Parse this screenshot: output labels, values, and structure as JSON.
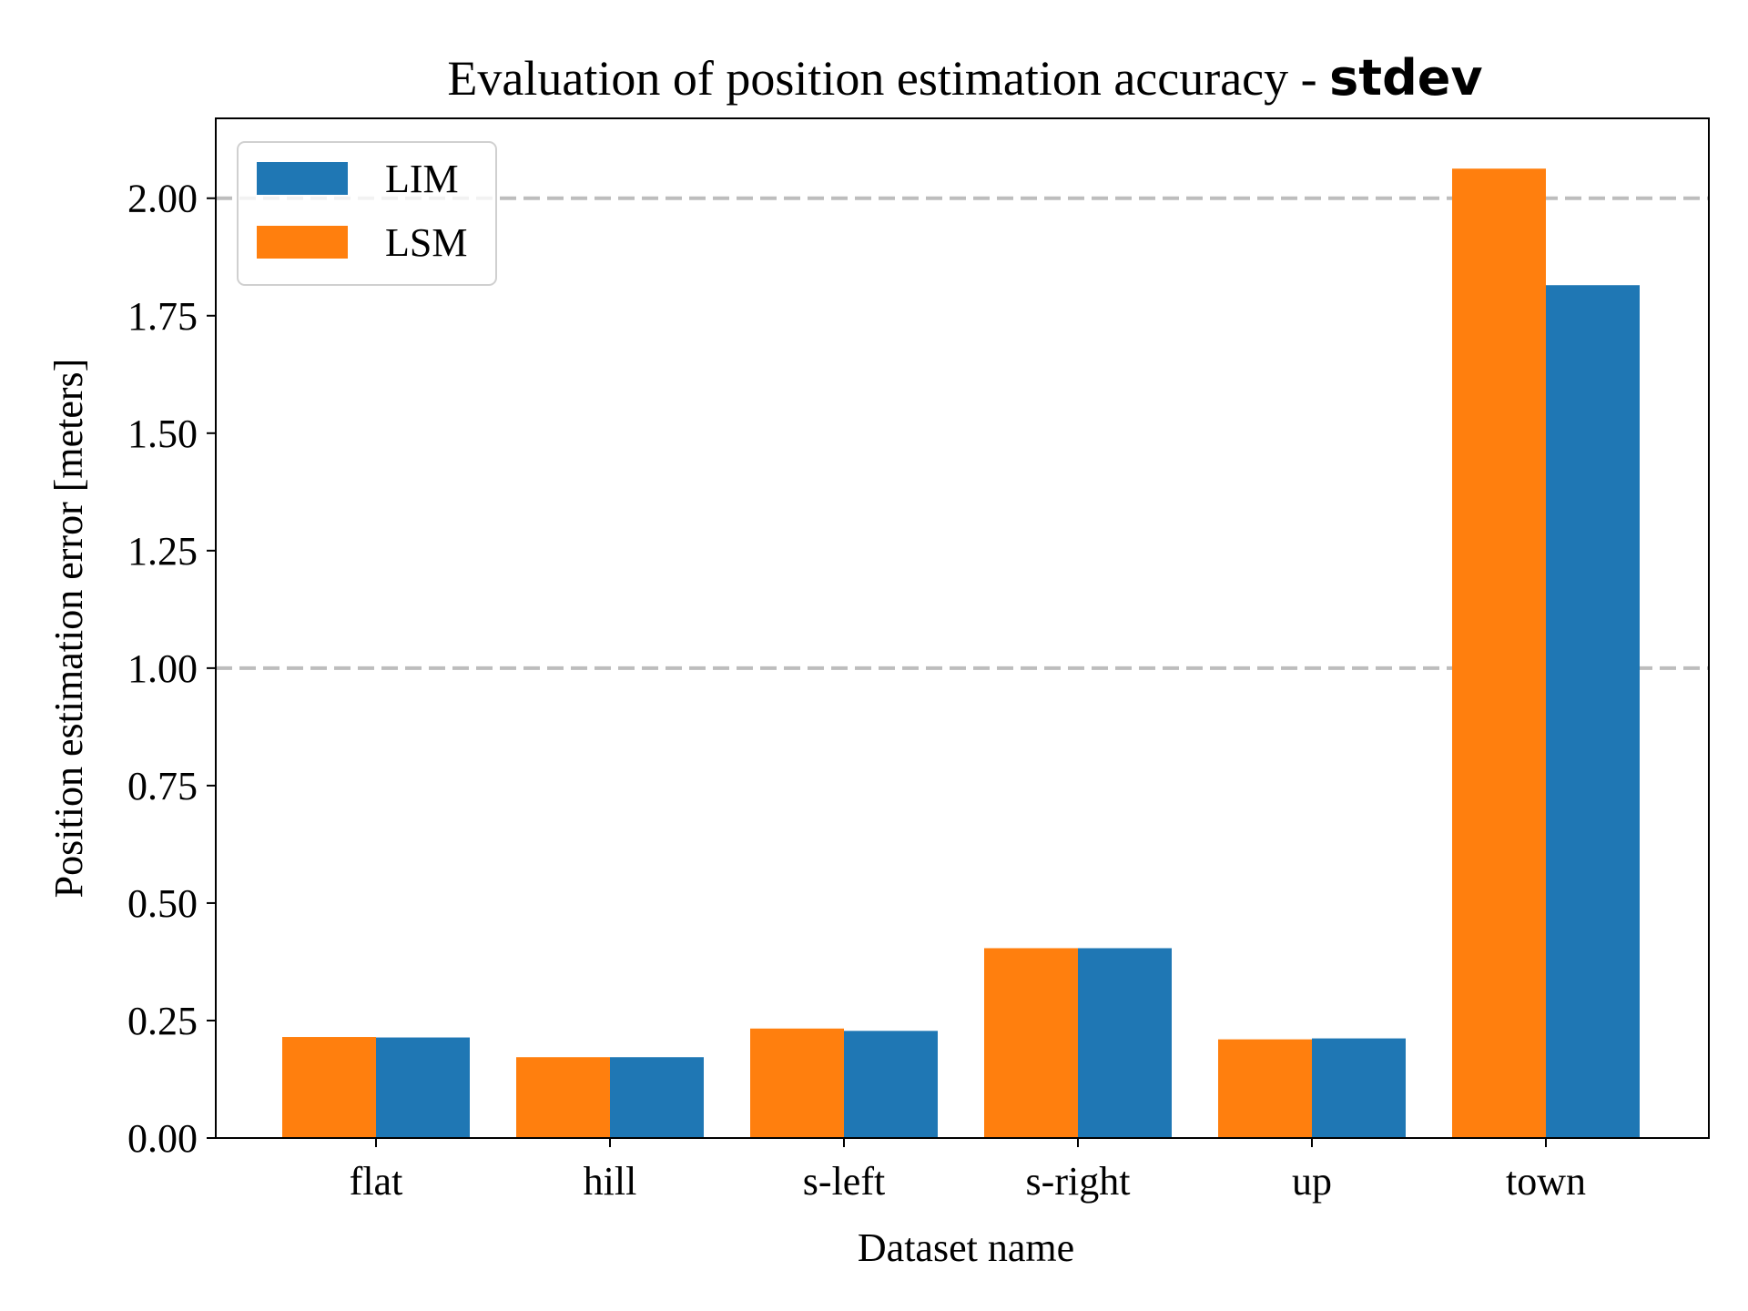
{
  "chart_data": {
    "type": "bar",
    "title": "Evaluation of position estimation accuracy - ",
    "title_bold": "stdev",
    "xlabel": "Dataset name",
    "ylabel": "Position estimation error [meters]",
    "categories": [
      "flat",
      "hill",
      "s-left",
      "s-right",
      "up",
      "town"
    ],
    "series": [
      {
        "name": "LSM",
        "color": "#ff7f0e",
        "values": [
          0.215,
          0.172,
          0.233,
          0.404,
          0.21,
          2.063
        ]
      },
      {
        "name": "LIM",
        "color": "#1f77b4",
        "values": [
          0.214,
          0.172,
          0.228,
          0.404,
          0.212,
          1.815
        ]
      }
    ],
    "legend_order": [
      "LIM",
      "LSM"
    ],
    "legend_placement": "top-left",
    "ylim": [
      0,
      2.17
    ],
    "yticks": [
      "0.00",
      "0.25",
      "0.50",
      "0.75",
      "1.00",
      "1.25",
      "1.50",
      "1.75",
      "2.00"
    ],
    "reference_lines": [
      1.0,
      2.0
    ],
    "grid": false
  }
}
